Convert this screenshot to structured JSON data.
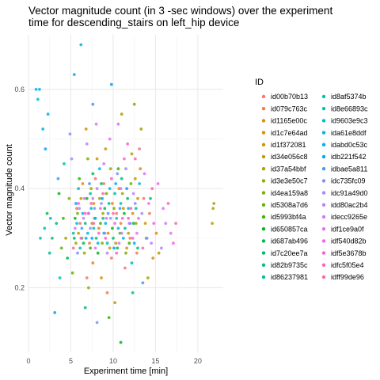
{
  "chart_data": {
    "type": "scatter",
    "title_lines": [
      "Vector magnitude count (in 3 -sec windows) over the experiment",
      "time for descending_stairs on left_hip device"
    ],
    "xlabel": "Experiment time [min]",
    "ylabel": "Vector magnitude count",
    "xlim": [
      0,
      23
    ],
    "ylim": [
      0.07,
      0.71
    ],
    "x_ticks": [
      0,
      5,
      10,
      15,
      20
    ],
    "y_ticks": [
      0.2,
      0.4,
      0.6
    ],
    "grid": true,
    "legend_position": "right",
    "legend_title": "ID",
    "series": [
      {
        "name": "id00b70b13",
        "color": "#F8766D",
        "points": [
          [
            6.1,
            0.33
          ],
          [
            7.9,
            0.42
          ],
          [
            9.8,
            0.26
          ],
          [
            10.4,
            0.35
          ],
          [
            12.0,
            0.3
          ],
          [
            13.6,
            0.38
          ],
          [
            6.9,
            0.22
          ],
          [
            11.4,
            0.24
          ]
        ]
      },
      {
        "name": "id079c763c",
        "color": "#F17D4E",
        "points": [
          [
            5.7,
            0.36
          ],
          [
            7.2,
            0.29
          ],
          [
            8.9,
            0.41
          ],
          [
            10.9,
            0.33
          ],
          [
            12.8,
            0.27
          ],
          [
            14.3,
            0.35
          ],
          [
            9.3,
            0.19
          ]
        ]
      },
      {
        "name": "id1165e00c",
        "color": "#E7861B",
        "points": [
          [
            6.4,
            0.41
          ],
          [
            8.3,
            0.32
          ],
          [
            9.9,
            0.37
          ],
          [
            11.6,
            0.28
          ],
          [
            13.2,
            0.44
          ],
          [
            15.1,
            0.31
          ],
          [
            7.6,
            0.25
          ]
        ]
      },
      {
        "name": "id1c7e64ad",
        "color": "#DB8E00",
        "points": [
          [
            6.8,
            0.52
          ],
          [
            7.7,
            0.37
          ],
          [
            9.4,
            0.31
          ],
          [
            10.7,
            0.4
          ],
          [
            12.3,
            0.35
          ],
          [
            14.7,
            0.26
          ],
          [
            8.6,
            0.22
          ]
        ]
      },
      {
        "name": "id1f372081",
        "color": "#CD9600",
        "points": [
          [
            5.9,
            0.31
          ],
          [
            8.1,
            0.46
          ],
          [
            9.6,
            0.28
          ],
          [
            11.2,
            0.36
          ],
          [
            12.6,
            0.42
          ],
          [
            13.8,
            0.33
          ],
          [
            10.2,
            0.17
          ]
        ]
      },
      {
        "name": "id34e056c8",
        "color": "#BE9C00",
        "points": [
          [
            6.2,
            0.38
          ],
          [
            7.5,
            0.33
          ],
          [
            9.1,
            0.48
          ],
          [
            11.8,
            0.31
          ],
          [
            12.9,
            0.38
          ],
          [
            15.4,
            0.27
          ],
          [
            21.9,
            0.37
          ],
          [
            21.7,
            0.33
          ]
        ]
      },
      {
        "name": "id37a54bbf",
        "color": "#AEA200",
        "points": [
          [
            5.6,
            0.29
          ],
          [
            7.4,
            0.4
          ],
          [
            8.8,
            0.35
          ],
          [
            10.3,
            0.29
          ],
          [
            12.2,
            0.47
          ],
          [
            14.1,
            0.22
          ],
          [
            21.8,
            0.36
          ],
          [
            11.0,
            0.55
          ]
        ]
      },
      {
        "name": "id3e3e50c7",
        "color": "#9AA800",
        "points": [
          [
            6.6,
            0.27
          ],
          [
            8.4,
            0.38
          ],
          [
            9.7,
            0.44
          ],
          [
            11.1,
            0.39
          ],
          [
            12.7,
            0.33
          ],
          [
            13.3,
            0.52
          ],
          [
            7.1,
            0.2
          ],
          [
            4.4,
            0.3
          ]
        ]
      },
      {
        "name": "id4ea159a8",
        "color": "#84AD00",
        "points": [
          [
            5.8,
            0.35
          ],
          [
            7.0,
            0.46
          ],
          [
            8.7,
            0.29
          ],
          [
            10.1,
            0.36
          ],
          [
            11.5,
            0.27
          ],
          [
            13.9,
            0.3
          ],
          [
            12.5,
            0.57
          ],
          [
            4.8,
            0.38
          ]
        ]
      },
      {
        "name": "id5308a7d6",
        "color": "#66B100",
        "points": [
          [
            6.3,
            0.3
          ],
          [
            7.8,
            0.34
          ],
          [
            9.2,
            0.39
          ],
          [
            10.8,
            0.31
          ],
          [
            12.1,
            0.41
          ],
          [
            3.9,
            0.28
          ],
          [
            5.2,
            0.23
          ]
        ]
      },
      {
        "name": "id5993bf4a",
        "color": "#3AB500",
        "points": [
          [
            6.0,
            0.42
          ],
          [
            7.3,
            0.28
          ],
          [
            8.5,
            0.33
          ],
          [
            10.6,
            0.44
          ],
          [
            11.9,
            0.29
          ],
          [
            4.1,
            0.34
          ],
          [
            9.5,
            0.14
          ]
        ]
      },
      {
        "name": "id650857ca",
        "color": "#00B81F",
        "points": [
          [
            5.5,
            0.34
          ],
          [
            6.9,
            0.38
          ],
          [
            8.2,
            0.27
          ],
          [
            9.9,
            0.32
          ],
          [
            11.3,
            0.35
          ],
          [
            3.6,
            0.39
          ],
          [
            10.9,
            0.09
          ]
        ]
      },
      {
        "name": "id687ab496",
        "color": "#00BB4E",
        "points": [
          [
            6.5,
            0.29
          ],
          [
            7.6,
            0.43
          ],
          [
            9.0,
            0.36
          ],
          [
            10.5,
            0.28
          ],
          [
            12.4,
            0.33
          ],
          [
            4.6,
            0.26
          ],
          [
            2.2,
            0.35
          ]
        ]
      },
      {
        "name": "id7c20ee7a",
        "color": "#00BD6D",
        "points": [
          [
            5.4,
            0.3
          ],
          [
            7.1,
            0.35
          ],
          [
            8.6,
            0.41
          ],
          [
            10.0,
            0.3
          ],
          [
            11.7,
            0.38
          ],
          [
            3.3,
            0.33
          ],
          [
            6.7,
            0.16
          ]
        ]
      },
      {
        "name": "id82b9735c",
        "color": "#00BF86",
        "points": [
          [
            6.7,
            0.33
          ],
          [
            8.0,
            0.3
          ],
          [
            9.5,
            0.37
          ],
          [
            11.0,
            0.42
          ],
          [
            12.9,
            0.28
          ],
          [
            2.8,
            0.3
          ],
          [
            14.4,
            0.38
          ]
        ]
      },
      {
        "name": "id86237981",
        "color": "#00C09C",
        "points": [
          [
            5.3,
            0.31
          ],
          [
            7.3,
            0.39
          ],
          [
            8.8,
            0.34
          ],
          [
            10.2,
            0.39
          ],
          [
            11.4,
            0.32
          ],
          [
            2.5,
            0.27
          ],
          [
            12.3,
            0.19
          ]
        ]
      },
      {
        "name": "id8af5374b",
        "color": "#00C0B1",
        "points": [
          [
            6.1,
            0.28
          ],
          [
            7.7,
            0.32
          ],
          [
            9.3,
            0.29
          ],
          [
            10.9,
            0.37
          ],
          [
            12.2,
            0.25
          ],
          [
            1.9,
            0.32
          ],
          [
            4.2,
            0.45
          ]
        ]
      },
      {
        "name": "id8e66893c",
        "color": "#00BEC4",
        "points": [
          [
            5.9,
            0.4
          ],
          [
            7.4,
            0.36
          ],
          [
            8.9,
            0.31
          ],
          [
            10.4,
            0.34
          ],
          [
            12.7,
            0.36
          ],
          [
            1.4,
            0.3
          ],
          [
            3.7,
            0.22
          ]
        ]
      },
      {
        "name": "id9603e9c3",
        "color": "#00BBD6",
        "points": [
          [
            6.4,
            0.35
          ],
          [
            8.2,
            0.29
          ],
          [
            9.6,
            0.4
          ],
          [
            11.2,
            0.3
          ],
          [
            13.1,
            0.41
          ],
          [
            1.1,
            0.58
          ],
          [
            2.6,
            0.34
          ]
        ]
      },
      {
        "name": "ida61e8ddf",
        "color": "#00B6E5",
        "points": [
          [
            5.7,
            0.33
          ],
          [
            7.0,
            0.31
          ],
          [
            8.4,
            0.44
          ],
          [
            10.6,
            0.32
          ],
          [
            11.8,
            0.36
          ],
          [
            1.3,
            0.6
          ],
          [
            2.3,
            0.55
          ],
          [
            6.2,
            0.69
          ]
        ]
      },
      {
        "name": "idabd0c53c",
        "color": "#00AFF2",
        "points": [
          [
            6.8,
            0.3
          ],
          [
            7.9,
            0.34
          ],
          [
            9.1,
            0.33
          ],
          [
            10.3,
            0.41
          ],
          [
            12.5,
            0.29
          ],
          [
            1.7,
            0.52
          ],
          [
            0.9,
            0.6
          ],
          [
            5.4,
            0.63
          ]
        ]
      },
      {
        "name": "idb221f542",
        "color": "#00A6FC",
        "points": [
          [
            5.6,
            0.37
          ],
          [
            7.5,
            0.3
          ],
          [
            8.7,
            0.38
          ],
          [
            10.1,
            0.28
          ],
          [
            11.6,
            0.4
          ],
          [
            2.0,
            0.48
          ],
          [
            9.8,
            0.61
          ],
          [
            3.1,
            0.15
          ]
        ]
      },
      {
        "name": "idbae5a811",
        "color": "#3D9CFF",
        "points": [
          [
            6.3,
            0.32
          ],
          [
            7.2,
            0.41
          ],
          [
            9.4,
            0.35
          ],
          [
            10.8,
            0.36
          ],
          [
            12.0,
            0.33
          ],
          [
            3.5,
            0.42
          ],
          [
            7.6,
            0.57
          ],
          [
            13.5,
            0.21
          ]
        ]
      },
      {
        "name": "idc735fc09",
        "color": "#7E92FF",
        "points": [
          [
            5.8,
            0.27
          ],
          [
            7.8,
            0.36
          ],
          [
            9.0,
            0.31
          ],
          [
            10.5,
            0.43
          ],
          [
            12.6,
            0.37
          ],
          [
            4.9,
            0.51
          ],
          [
            14.0,
            0.3
          ],
          [
            8.1,
            0.13
          ]
        ]
      },
      {
        "name": "idc91a49d0",
        "color": "#A589FF",
        "points": [
          [
            6.0,
            0.36
          ],
          [
            7.3,
            0.32
          ],
          [
            8.6,
            0.37
          ],
          [
            9.7,
            0.34
          ],
          [
            11.5,
            0.44
          ],
          [
            13.4,
            0.35
          ],
          [
            5.1,
            0.46
          ],
          [
            15.7,
            0.28
          ]
        ]
      },
      {
        "name": "idd80ac2b4",
        "color": "#C07FFF",
        "points": [
          [
            6.5,
            0.34
          ],
          [
            8.1,
            0.4
          ],
          [
            9.3,
            0.27
          ],
          [
            11.0,
            0.31
          ],
          [
            12.4,
            0.39
          ],
          [
            14.5,
            0.29
          ],
          [
            6.9,
            0.49
          ],
          [
            16.2,
            0.33
          ]
        ]
      },
      {
        "name": "idecc9265e",
        "color": "#D575FE",
        "points": [
          [
            5.5,
            0.32
          ],
          [
            7.6,
            0.38
          ],
          [
            8.9,
            0.45
          ],
          [
            10.7,
            0.29
          ],
          [
            11.9,
            0.33
          ],
          [
            13.7,
            0.43
          ],
          [
            8.0,
            0.53
          ],
          [
            15.9,
            0.36
          ]
        ]
      },
      {
        "name": "idf1ce9a0f",
        "color": "#E66EF6",
        "points": [
          [
            6.6,
            0.38
          ],
          [
            7.9,
            0.28
          ],
          [
            9.2,
            0.34
          ],
          [
            10.9,
            0.4
          ],
          [
            12.8,
            0.31
          ],
          [
            14.2,
            0.37
          ],
          [
            9.6,
            0.5
          ],
          [
            16.8,
            0.31
          ]
        ]
      },
      {
        "name": "idf540d82b",
        "color": "#F365E6",
        "points": [
          [
            6.2,
            0.3
          ],
          [
            7.1,
            0.35
          ],
          [
            8.5,
            0.36
          ],
          [
            10.2,
            0.33
          ],
          [
            11.3,
            0.46
          ],
          [
            13.0,
            0.34
          ],
          [
            10.6,
            0.53
          ],
          [
            15.3,
            0.41
          ]
        ]
      },
      {
        "name": "idf5e3678b",
        "color": "#FC60D5",
        "points": [
          [
            5.9,
            0.37
          ],
          [
            7.7,
            0.33
          ],
          [
            9.8,
            0.42
          ],
          [
            11.1,
            0.34
          ],
          [
            12.3,
            0.3
          ],
          [
            14.8,
            0.33
          ],
          [
            11.7,
            0.49
          ],
          [
            17.1,
            0.29
          ]
        ]
      },
      {
        "name": "idfc5f05e4",
        "color": "#FF62BC",
        "points": [
          [
            6.7,
            0.35
          ],
          [
            8.3,
            0.31
          ],
          [
            9.1,
            0.3
          ],
          [
            10.4,
            0.27
          ],
          [
            12.1,
            0.36
          ],
          [
            14.6,
            0.4
          ],
          [
            12.6,
            0.46
          ],
          [
            16.5,
            0.37
          ]
        ]
      },
      {
        "name": "idff99de96",
        "color": "#FF67A4",
        "points": [
          [
            5.3,
            0.28
          ],
          [
            7.4,
            0.37
          ],
          [
            8.8,
            0.39
          ],
          [
            10.0,
            0.35
          ],
          [
            11.8,
            0.34
          ],
          [
            13.5,
            0.28
          ],
          [
            13.1,
            0.48
          ],
          [
            17.4,
            0.33
          ]
        ]
      }
    ]
  }
}
